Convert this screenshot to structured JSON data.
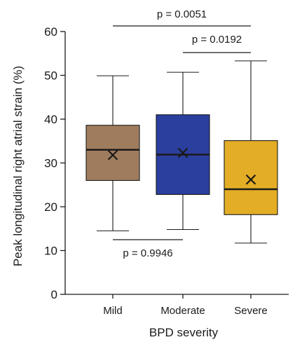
{
  "chart_data": {
    "type": "box",
    "xlabel": "BPD severity",
    "ylabel": "Peak longitudinal right atrial strain (%)",
    "ylim": [
      0,
      60
    ],
    "yticks": [
      0,
      10,
      20,
      30,
      40,
      50,
      60
    ],
    "categories": [
      "Mild",
      "Moderate",
      "Severe"
    ],
    "boxes": [
      {
        "category": "Mild",
        "min": 14.5,
        "q1": 26.0,
        "median": 33.0,
        "q3": 38.6,
        "max": 49.9,
        "mean": 31.8,
        "color": "#a07c5e"
      },
      {
        "category": "Moderate",
        "min": 14.8,
        "q1": 22.8,
        "median": 31.9,
        "q3": 41.0,
        "max": 50.7,
        "mean": 32.3,
        "color": "#2a3f9e"
      },
      {
        "category": "Severe",
        "min": 11.7,
        "q1": 18.2,
        "median": 24.0,
        "q3": 35.1,
        "max": 53.3,
        "mean": 26.2,
        "color": "#e3ad25"
      }
    ],
    "comparisons": [
      {
        "groups": [
          "Mild",
          "Severe"
        ],
        "label": "p = 0.0051"
      },
      {
        "groups": [
          "Moderate",
          "Severe"
        ],
        "label": "p = 0.0192"
      },
      {
        "groups": [
          "Mild",
          "Moderate"
        ],
        "label": "p = 0.9946"
      }
    ],
    "grid": false,
    "legend": "none"
  }
}
